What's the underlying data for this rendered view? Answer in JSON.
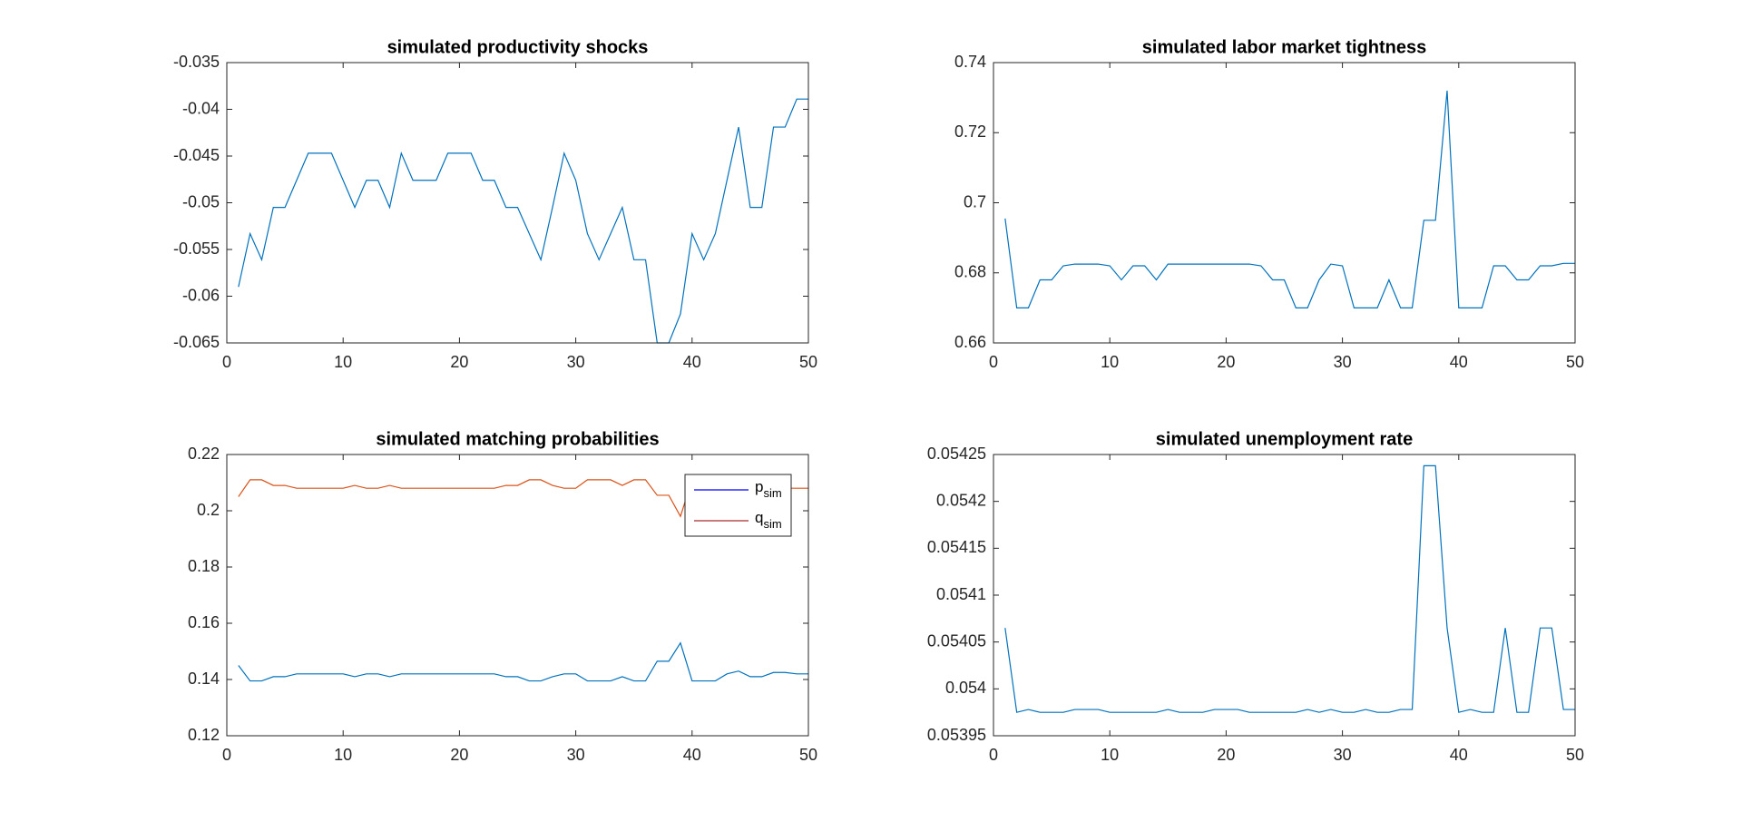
{
  "chart_data": [
    {
      "type": "line",
      "title": "simulated productivity shocks",
      "x": [
        1,
        2,
        3,
        4,
        5,
        6,
        7,
        8,
        9,
        10,
        11,
        12,
        13,
        14,
        15,
        16,
        17,
        18,
        19,
        20,
        21,
        22,
        23,
        24,
        25,
        26,
        27,
        28,
        29,
        30,
        31,
        32,
        33,
        34,
        35,
        36,
        37,
        38,
        39,
        40,
        41,
        42,
        43,
        44,
        45,
        46,
        47,
        48,
        49,
        50
      ],
      "values": [
        -0.059,
        -0.0533,
        -0.0561,
        -0.0505,
        -0.0505,
        -0.0476,
        -0.0447,
        -0.0447,
        -0.0447,
        -0.0476,
        -0.0505,
        -0.0476,
        -0.0476,
        -0.0505,
        -0.0447,
        -0.0476,
        -0.0476,
        -0.0476,
        -0.0447,
        -0.0447,
        -0.0447,
        -0.0476,
        -0.0476,
        -0.0505,
        -0.0505,
        -0.0533,
        -0.0561,
        -0.0505,
        -0.0447,
        -0.0476,
        -0.0533,
        -0.0561,
        -0.0533,
        -0.0505,
        -0.0561,
        -0.0561,
        -0.065,
        -0.065,
        -0.0619,
        -0.0533,
        -0.0561,
        -0.0533,
        -0.0476,
        -0.0419,
        -0.0505,
        -0.0505,
        -0.0419,
        -0.0419,
        -0.0389,
        -0.0389
      ],
      "color": "#0072bd",
      "xlim": [
        0,
        50
      ],
      "xticks": [
        0,
        10,
        20,
        30,
        40,
        50
      ],
      "ylim": [
        -0.065,
        -0.035
      ],
      "yticks": [
        -0.065,
        -0.06,
        -0.055,
        -0.05,
        -0.045,
        -0.04,
        -0.035
      ]
    },
    {
      "type": "line",
      "title": "simulated labor market tightness",
      "x": [
        1,
        2,
        3,
        4,
        5,
        6,
        7,
        8,
        9,
        10,
        11,
        12,
        13,
        14,
        15,
        16,
        17,
        18,
        19,
        20,
        21,
        22,
        23,
        24,
        25,
        26,
        27,
        28,
        29,
        30,
        31,
        32,
        33,
        34,
        35,
        36,
        37,
        38,
        39,
        40,
        41,
        42,
        43,
        44,
        45,
        46,
        47,
        48,
        49,
        50
      ],
      "values": [
        0.6955,
        0.67,
        0.67,
        0.678,
        0.678,
        0.682,
        0.6825,
        0.6825,
        0.6825,
        0.682,
        0.678,
        0.682,
        0.682,
        0.678,
        0.6825,
        0.6825,
        0.6825,
        0.6825,
        0.6825,
        0.6825,
        0.6825,
        0.6825,
        0.682,
        0.678,
        0.678,
        0.67,
        0.67,
        0.678,
        0.6825,
        0.682,
        0.67,
        0.67,
        0.67,
        0.678,
        0.67,
        0.67,
        0.695,
        0.695,
        0.732,
        0.67,
        0.67,
        0.67,
        0.682,
        0.682,
        0.678,
        0.678,
        0.682,
        0.682,
        0.6827,
        0.6827
      ],
      "color": "#0072bd",
      "xlim": [
        0,
        50
      ],
      "xticks": [
        0,
        10,
        20,
        30,
        40,
        50
      ],
      "ylim": [
        0.66,
        0.74
      ],
      "yticks": [
        0.66,
        0.68,
        0.7,
        0.72,
        0.74
      ]
    },
    {
      "type": "line",
      "title": "simulated matching probabilities",
      "x": [
        1,
        2,
        3,
        4,
        5,
        6,
        7,
        8,
        9,
        10,
        11,
        12,
        13,
        14,
        15,
        16,
        17,
        18,
        19,
        20,
        21,
        22,
        23,
        24,
        25,
        26,
        27,
        28,
        29,
        30,
        31,
        32,
        33,
        34,
        35,
        36,
        37,
        38,
        39,
        40,
        41,
        42,
        43,
        44,
        45,
        46,
        47,
        48,
        49,
        50
      ],
      "series": [
        {
          "name": "p",
          "subscript": "sim",
          "color": "#0072bd",
          "legend_color": "#0000ff",
          "values": [
            0.145,
            0.1395,
            0.1395,
            0.141,
            0.141,
            0.142,
            0.142,
            0.142,
            0.142,
            0.142,
            0.141,
            0.142,
            0.142,
            0.141,
            0.142,
            0.142,
            0.142,
            0.142,
            0.142,
            0.142,
            0.142,
            0.142,
            0.142,
            0.141,
            0.141,
            0.1395,
            0.1395,
            0.141,
            0.142,
            0.142,
            0.1395,
            0.1395,
            0.1395,
            0.141,
            0.1395,
            0.1395,
            0.1465,
            0.1465,
            0.153,
            0.1395,
            0.1395,
            0.1395,
            0.142,
            0.143,
            0.141,
            0.141,
            0.1425,
            0.1425,
            0.142,
            0.142
          ]
        },
        {
          "name": "q",
          "subscript": "sim",
          "color": "#d95319",
          "legend_color": "#a52a2a",
          "values": [
            0.205,
            0.211,
            0.211,
            0.209,
            0.209,
            0.208,
            0.208,
            0.208,
            0.208,
            0.208,
            0.209,
            0.208,
            0.208,
            0.209,
            0.208,
            0.208,
            0.208,
            0.208,
            0.208,
            0.208,
            0.208,
            0.208,
            0.208,
            0.209,
            0.209,
            0.211,
            0.211,
            0.209,
            0.208,
            0.208,
            0.211,
            0.211,
            0.211,
            0.209,
            0.211,
            0.211,
            0.2055,
            0.2055,
            0.198,
            0.211,
            0.211,
            0.211,
            0.208,
            0.207,
            0.209,
            0.209,
            0.208,
            0.208,
            0.208,
            0.208
          ]
        }
      ],
      "legend": "northeast",
      "xlim": [
        0,
        50
      ],
      "xticks": [
        0,
        10,
        20,
        30,
        40,
        50
      ],
      "ylim": [
        0.12,
        0.22
      ],
      "yticks": [
        0.12,
        0.14,
        0.16,
        0.18,
        0.2,
        0.22
      ]
    },
    {
      "type": "line",
      "title": "simulated unemployment rate",
      "x": [
        1,
        2,
        3,
        4,
        5,
        6,
        7,
        8,
        9,
        10,
        11,
        12,
        13,
        14,
        15,
        16,
        17,
        18,
        19,
        20,
        21,
        22,
        23,
        24,
        25,
        26,
        27,
        28,
        29,
        30,
        31,
        32,
        33,
        34,
        35,
        36,
        37,
        38,
        39,
        40,
        41,
        42,
        43,
        44,
        45,
        46,
        47,
        48,
        49,
        50
      ],
      "values": [
        0.054065,
        0.053975,
        0.053978,
        0.053975,
        0.053975,
        0.053975,
        0.053978,
        0.053978,
        0.053978,
        0.053975,
        0.053975,
        0.053975,
        0.053975,
        0.053975,
        0.053978,
        0.053975,
        0.053975,
        0.053975,
        0.053978,
        0.053978,
        0.053978,
        0.053975,
        0.053975,
        0.053975,
        0.053975,
        0.053975,
        0.053978,
        0.053975,
        0.053978,
        0.053975,
        0.053975,
        0.053978,
        0.053975,
        0.053975,
        0.053978,
        0.053978,
        0.054238,
        0.054238,
        0.054065,
        0.053975,
        0.053978,
        0.053975,
        0.053975,
        0.054065,
        0.053975,
        0.053975,
        0.054065,
        0.054065,
        0.053978,
        0.053978
      ],
      "color": "#0072bd",
      "xlim": [
        0,
        50
      ],
      "xticks": [
        0,
        10,
        20,
        30,
        40,
        50
      ],
      "ylim": [
        0.05395,
        0.05425
      ],
      "yticks": [
        0.05395,
        0.054,
        0.05405,
        0.0541,
        0.05415,
        0.0542,
        0.05425
      ]
    }
  ]
}
